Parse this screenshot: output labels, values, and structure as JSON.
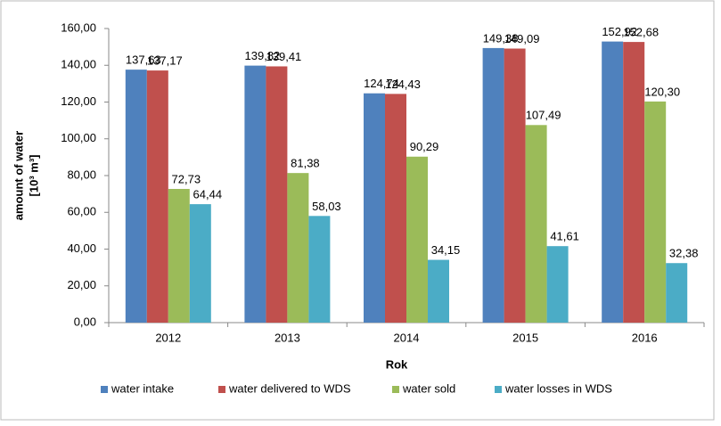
{
  "chart_data": {
    "type": "bar",
    "y_label": [
      "amount of water",
      "[10³ m³]"
    ],
    "x_label": "Rok",
    "categories": [
      "2012",
      "2013",
      "2014",
      "2015",
      "2016"
    ],
    "series": [
      {
        "name": "water intake",
        "color": "#4f81bd",
        "values": [
          137.63,
          139.82,
          124.74,
          149.38,
          152.92
        ],
        "value_labels": [
          "137,63",
          "139,82",
          "124,74",
          "149,38",
          "152,92"
        ]
      },
      {
        "name": "water delivered to WDS",
        "color": "#c0504d",
        "values": [
          137.17,
          139.41,
          124.43,
          149.09,
          152.68
        ],
        "value_labels": [
          "137,17",
          "139,41",
          "124,43",
          "149,09",
          "152,68"
        ]
      },
      {
        "name": "water sold",
        "color": "#9bbb59",
        "values": [
          72.73,
          81.38,
          90.29,
          107.49,
          120.3
        ],
        "value_labels": [
          "72,73",
          "81,38",
          "90,29",
          "107,49",
          "120,30"
        ]
      },
      {
        "name": "water losses in WDS",
        "color": "#4bacc6",
        "values": [
          64.44,
          58.03,
          34.15,
          41.61,
          32.38
        ],
        "value_labels": [
          "64,44",
          "58,03",
          "34,15",
          "41,61",
          "32,38"
        ]
      }
    ],
    "ylim": [
      0,
      160
    ],
    "yticks": [
      {
        "value": 0,
        "label": "0,00"
      },
      {
        "value": 20,
        "label": "20,00"
      },
      {
        "value": 40,
        "label": "40,00"
      },
      {
        "value": 60,
        "label": "60,00"
      },
      {
        "value": 80,
        "label": "80,00"
      },
      {
        "value": 100,
        "label": "100,00"
      },
      {
        "value": 120,
        "label": "120,00"
      },
      {
        "value": 140,
        "label": "140,00"
      },
      {
        "value": 160,
        "label": "160,00"
      }
    ],
    "grid": false,
    "legend": "bottom"
  }
}
